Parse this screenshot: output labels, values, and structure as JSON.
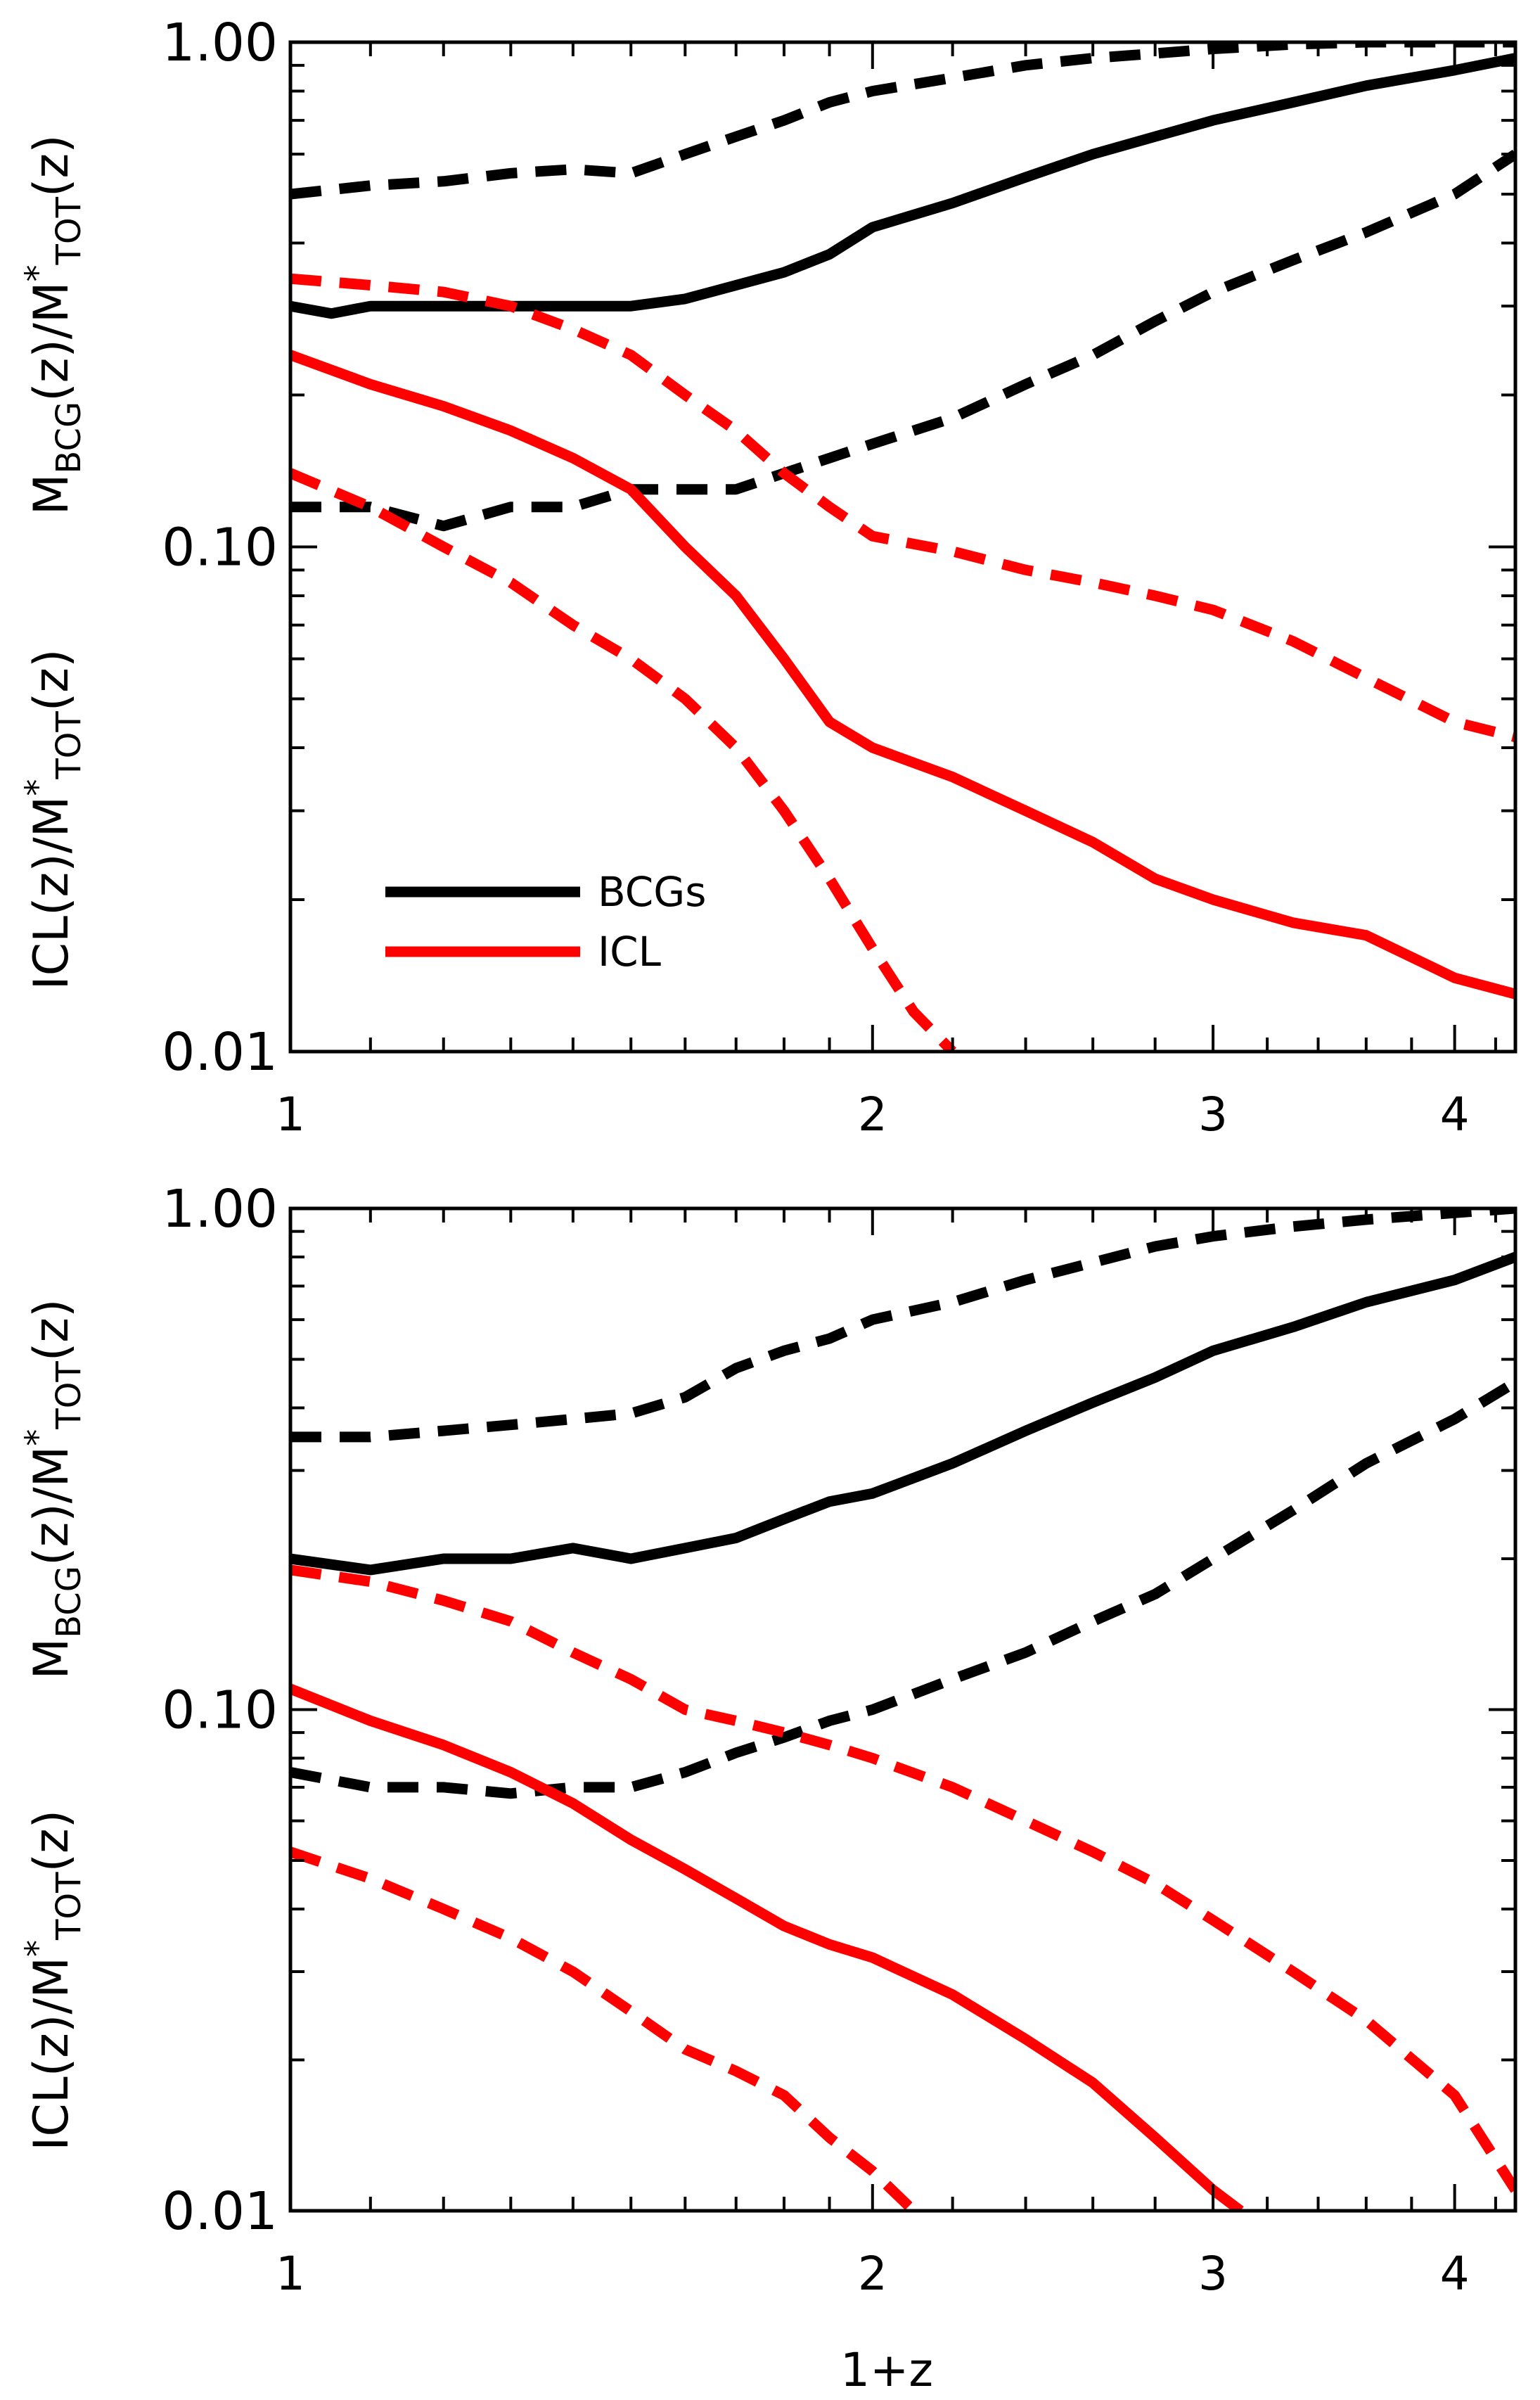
{
  "colors": {
    "bcg": "#000000",
    "icl": "#ff0000",
    "axis": "#000000",
    "background": "#ffffff"
  },
  "xlabel": "1+z",
  "chart_data": [
    {
      "type": "line",
      "panel": "top",
      "xscale": "log",
      "yscale": "log",
      "xlim": [
        1.0,
        4.3
      ],
      "ylim": [
        0.01,
        1.0
      ],
      "xticks": [
        1,
        2,
        3,
        4
      ],
      "xtick_labels": [
        "1",
        "2",
        "3",
        "4"
      ],
      "yticks": [
        0.01,
        0.1,
        1.0
      ],
      "ytick_labels": [
        "0.01",
        "0.10",
        "1.00"
      ],
      "ylabel_upper": {
        "main": "M",
        "sub": "BCG",
        "mid": "(z)/M",
        "sup": "*",
        "sub2": "TOT",
        "end": "(z)"
      },
      "ylabel_lower": {
        "main": "ICL(z)/M",
        "sup": "*",
        "sub2": "TOT",
        "end": "(z)"
      },
      "legend": [
        {
          "label": "BCGs",
          "color": "#000000"
        },
        {
          "label": "ICL",
          "color": "#ff0000"
        }
      ],
      "legend_position": "lower-left",
      "series": [
        {
          "name": "BCG median",
          "color": "#000000",
          "style": "solid",
          "x": [
            1.0,
            1.05,
            1.1,
            1.2,
            1.3,
            1.4,
            1.5,
            1.6,
            1.7,
            1.8,
            1.9,
            2.0,
            2.2,
            2.4,
            2.6,
            2.8,
            3.0,
            3.3,
            3.6,
            4.0,
            4.3
          ],
          "y": [
            0.3,
            0.29,
            0.3,
            0.3,
            0.3,
            0.3,
            0.3,
            0.31,
            0.33,
            0.35,
            0.38,
            0.43,
            0.48,
            0.54,
            0.6,
            0.65,
            0.7,
            0.76,
            0.82,
            0.88,
            0.93
          ]
        },
        {
          "name": "BCG upper",
          "color": "#000000",
          "style": "dashed",
          "x": [
            1.0,
            1.1,
            1.2,
            1.3,
            1.4,
            1.5,
            1.6,
            1.7,
            1.8,
            1.9,
            2.0,
            2.2,
            2.4,
            2.6,
            2.8,
            3.0,
            3.3,
            3.6,
            4.0,
            4.3
          ],
          "y": [
            0.5,
            0.52,
            0.53,
            0.55,
            0.56,
            0.55,
            0.6,
            0.65,
            0.7,
            0.76,
            0.8,
            0.85,
            0.9,
            0.93,
            0.95,
            0.97,
            0.99,
            1.0,
            1.0,
            1.0
          ]
        },
        {
          "name": "BCG lower",
          "color": "#000000",
          "style": "dashed",
          "x": [
            1.0,
            1.1,
            1.2,
            1.3,
            1.4,
            1.5,
            1.6,
            1.7,
            1.8,
            1.9,
            2.0,
            2.2,
            2.4,
            2.6,
            2.8,
            3.0,
            3.3,
            3.6,
            4.0,
            4.3
          ],
          "y": [
            0.12,
            0.12,
            0.11,
            0.12,
            0.12,
            0.13,
            0.13,
            0.13,
            0.14,
            0.15,
            0.16,
            0.18,
            0.21,
            0.24,
            0.28,
            0.32,
            0.37,
            0.42,
            0.5,
            0.6
          ]
        },
        {
          "name": "ICL median",
          "color": "#ff0000",
          "style": "solid",
          "x": [
            1.0,
            1.1,
            1.2,
            1.3,
            1.4,
            1.5,
            1.6,
            1.7,
            1.8,
            1.9,
            2.0,
            2.2,
            2.4,
            2.6,
            2.8,
            3.0,
            3.3,
            3.6,
            4.0,
            4.3
          ],
          "y": [
            0.24,
            0.21,
            0.19,
            0.17,
            0.15,
            0.13,
            0.1,
            0.08,
            0.06,
            0.045,
            0.04,
            0.035,
            0.03,
            0.026,
            0.022,
            0.02,
            0.018,
            0.017,
            0.014,
            0.013
          ]
        },
        {
          "name": "ICL upper",
          "color": "#ff0000",
          "style": "dashed",
          "x": [
            1.0,
            1.1,
            1.2,
            1.3,
            1.4,
            1.5,
            1.6,
            1.7,
            1.8,
            1.9,
            2.0,
            2.2,
            2.4,
            2.6,
            2.8,
            3.0,
            3.3,
            3.6,
            4.0,
            4.3
          ],
          "y": [
            0.34,
            0.33,
            0.32,
            0.3,
            0.27,
            0.24,
            0.2,
            0.17,
            0.14,
            0.12,
            0.105,
            0.098,
            0.09,
            0.085,
            0.08,
            0.075,
            0.065,
            0.055,
            0.045,
            0.042
          ]
        },
        {
          "name": "ICL lower",
          "color": "#ff0000",
          "style": "dashed",
          "x": [
            1.0,
            1.1,
            1.2,
            1.3,
            1.4,
            1.5,
            1.6,
            1.7,
            1.8,
            1.9,
            2.0,
            2.1,
            2.2
          ],
          "y": [
            0.14,
            0.12,
            0.1,
            0.085,
            0.07,
            0.06,
            0.05,
            0.04,
            0.03,
            0.022,
            0.016,
            0.012,
            0.01
          ]
        }
      ]
    },
    {
      "type": "line",
      "panel": "bottom",
      "xscale": "log",
      "yscale": "log",
      "xlim": [
        1.0,
        4.3
      ],
      "ylim": [
        0.01,
        1.0
      ],
      "xticks": [
        1,
        2,
        3,
        4
      ],
      "xtick_labels": [
        "1",
        "2",
        "3",
        "4"
      ],
      "yticks": [
        0.01,
        0.1,
        1.0
      ],
      "ytick_labels": [
        "0.01",
        "0.10",
        "1.00"
      ],
      "ylabel_upper": {
        "main": "M",
        "sub": "BCG",
        "mid": "(z)/M",
        "sup": "*",
        "sub2": "TOT",
        "end": "(z)"
      },
      "ylabel_lower": {
        "main": "ICL(z)/M",
        "sup": "*",
        "sub2": "TOT",
        "end": "(z)"
      },
      "series": [
        {
          "name": "BCG median",
          "color": "#000000",
          "style": "solid",
          "x": [
            1.0,
            1.1,
            1.2,
            1.3,
            1.4,
            1.5,
            1.6,
            1.7,
            1.8,
            1.9,
            2.0,
            2.2,
            2.4,
            2.6,
            2.8,
            3.0,
            3.3,
            3.6,
            4.0,
            4.3
          ],
          "y": [
            0.2,
            0.19,
            0.2,
            0.2,
            0.21,
            0.2,
            0.21,
            0.22,
            0.24,
            0.26,
            0.27,
            0.31,
            0.36,
            0.41,
            0.46,
            0.52,
            0.58,
            0.65,
            0.72,
            0.8
          ]
        },
        {
          "name": "BCG upper",
          "color": "#000000",
          "style": "dashed",
          "x": [
            1.0,
            1.1,
            1.2,
            1.3,
            1.4,
            1.5,
            1.6,
            1.7,
            1.8,
            1.9,
            2.0,
            2.2,
            2.4,
            2.6,
            2.8,
            3.0,
            3.3,
            3.6,
            4.0,
            4.3
          ],
          "y": [
            0.35,
            0.35,
            0.36,
            0.37,
            0.38,
            0.39,
            0.42,
            0.48,
            0.52,
            0.55,
            0.6,
            0.65,
            0.72,
            0.78,
            0.84,
            0.88,
            0.92,
            0.95,
            0.98,
            1.0
          ]
        },
        {
          "name": "BCG lower",
          "color": "#000000",
          "style": "dashed",
          "x": [
            1.0,
            1.1,
            1.2,
            1.3,
            1.4,
            1.5,
            1.6,
            1.7,
            1.8,
            1.9,
            2.0,
            2.2,
            2.4,
            2.6,
            2.8,
            3.0,
            3.3,
            3.6,
            4.0,
            4.3
          ],
          "y": [
            0.075,
            0.07,
            0.07,
            0.068,
            0.07,
            0.07,
            0.075,
            0.082,
            0.088,
            0.095,
            0.1,
            0.115,
            0.13,
            0.15,
            0.17,
            0.2,
            0.25,
            0.31,
            0.38,
            0.45
          ]
        },
        {
          "name": "ICL median",
          "color": "#ff0000",
          "style": "solid",
          "x": [
            1.0,
            1.1,
            1.2,
            1.3,
            1.4,
            1.5,
            1.6,
            1.7,
            1.8,
            1.9,
            2.0,
            2.2,
            2.4,
            2.6,
            2.8,
            3.0,
            3.1
          ],
          "y": [
            0.11,
            0.095,
            0.085,
            0.075,
            0.065,
            0.055,
            0.048,
            0.042,
            0.037,
            0.034,
            0.032,
            0.027,
            0.022,
            0.018,
            0.014,
            0.011,
            0.01
          ]
        },
        {
          "name": "ICL upper",
          "color": "#ff0000",
          "style": "dashed",
          "x": [
            1.0,
            1.1,
            1.2,
            1.3,
            1.4,
            1.5,
            1.6,
            1.7,
            1.8,
            1.9,
            2.0,
            2.2,
            2.4,
            2.6,
            2.8,
            3.0,
            3.3,
            3.6,
            4.0,
            4.3
          ],
          "y": [
            0.19,
            0.18,
            0.165,
            0.15,
            0.13,
            0.115,
            0.1,
            0.095,
            0.09,
            0.085,
            0.08,
            0.07,
            0.06,
            0.052,
            0.045,
            0.038,
            0.03,
            0.024,
            0.017,
            0.011
          ]
        },
        {
          "name": "ICL lower",
          "color": "#ff0000",
          "style": "dashed",
          "x": [
            1.0,
            1.1,
            1.2,
            1.3,
            1.4,
            1.5,
            1.6,
            1.7,
            1.8,
            1.9,
            2.0,
            2.1
          ],
          "y": [
            0.052,
            0.046,
            0.04,
            0.035,
            0.03,
            0.025,
            0.021,
            0.019,
            0.017,
            0.014,
            0.012,
            0.01
          ]
        }
      ]
    }
  ]
}
